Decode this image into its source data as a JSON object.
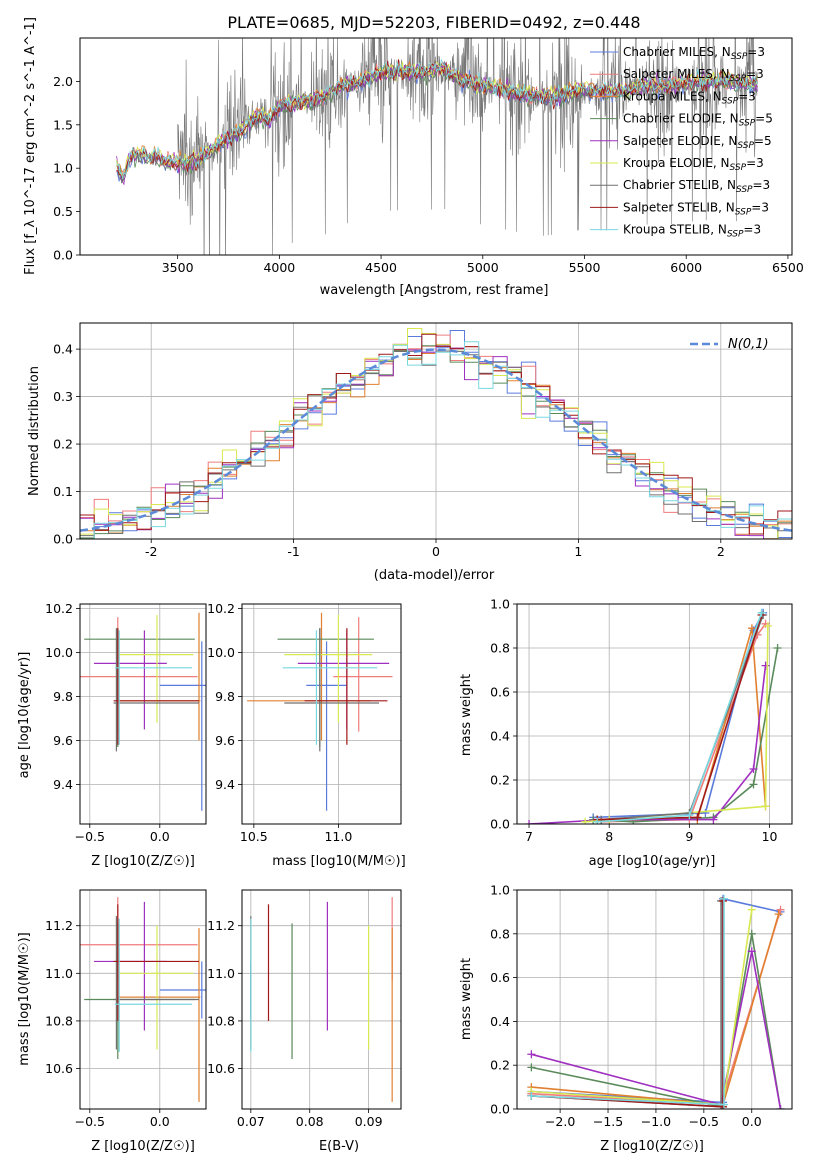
{
  "colors": [
    "#5b7bdc",
    "#f07c7c",
    "#e08030",
    "#5a8a5a",
    "#a030c0",
    "#d8e850",
    "#707070",
    "#a01818",
    "#7ad8e0"
  ],
  "series_labels": [
    "Chabrier MILES",
    "Salpeter MILES",
    "Kroupa MILES",
    "Chabrier ELODIE",
    "Salpeter ELODIE",
    "Kroupa ELODIE",
    "Chabrier STELIB",
    "Salpeter STELIB",
    "Kroupa STELIB"
  ],
  "nssp": [
    3,
    3,
    3,
    5,
    5,
    3,
    3,
    3,
    3
  ],
  "chart_data": [
    {
      "id": "spectrum",
      "type": "line",
      "title": "PLATE=0685, MJD=52203, FIBERID=0492, z=0.448",
      "xlabel": "wavelength [Angstrom, rest frame]",
      "ylabel": "Flux [f_λ 10^-17 erg cm^-2 s^-1 A^-1]",
      "xlim": [
        3020,
        6520
      ],
      "ylim": [
        0,
        2.5
      ],
      "xticks": [
        3500,
        4000,
        4500,
        5000,
        5500,
        6000,
        6500
      ],
      "yticks": [
        0.0,
        0.5,
        1.0,
        1.5,
        2.0
      ],
      "grid": false,
      "legend": "upper right",
      "model_continuum": [
        [
          3200,
          1.05
        ],
        [
          3230,
          0.87
        ],
        [
          3260,
          1.1
        ],
        [
          3300,
          1.16
        ],
        [
          3350,
          1.12
        ],
        [
          3400,
          1.12
        ],
        [
          3450,
          1.08
        ],
        [
          3500,
          1.06
        ],
        [
          3550,
          1.05
        ],
        [
          3600,
          1.1
        ],
        [
          3650,
          1.18
        ],
        [
          3700,
          1.28
        ],
        [
          3750,
          1.35
        ],
        [
          3800,
          1.42
        ],
        [
          3850,
          1.5
        ],
        [
          3900,
          1.62
        ],
        [
          3950,
          1.55
        ],
        [
          4000,
          1.72
        ],
        [
          4100,
          1.75
        ],
        [
          4200,
          1.8
        ],
        [
          4300,
          1.95
        ],
        [
          4400,
          2.0
        ],
        [
          4500,
          2.1
        ],
        [
          4600,
          2.12
        ],
        [
          4700,
          2.1
        ],
        [
          4800,
          2.15
        ],
        [
          4900,
          2.0
        ],
        [
          5000,
          1.95
        ],
        [
          5100,
          1.9
        ],
        [
          5200,
          1.85
        ],
        [
          5300,
          1.82
        ],
        [
          5400,
          1.85
        ],
        [
          5500,
          1.9
        ],
        [
          5600,
          1.88
        ],
        [
          5700,
          1.9
        ],
        [
          5800,
          1.95
        ],
        [
          5900,
          1.95
        ],
        [
          6000,
          1.98
        ],
        [
          6100,
          2.0
        ],
        [
          6200,
          2.0
        ],
        [
          6300,
          1.98
        ],
        [
          6350,
          1.98
        ]
      ],
      "data_noise_range": [
        3500,
        6350
      ]
    },
    {
      "id": "residuals",
      "type": "histogram",
      "xlabel": "(data-model)/error",
      "ylabel": "Normed distribution",
      "xlim": [
        -2.5,
        2.5
      ],
      "ylim": [
        0,
        0.455
      ],
      "xticks": [
        -2,
        -1,
        0,
        1,
        2
      ],
      "yticks": [
        0.0,
        0.1,
        0.2,
        0.3,
        0.4
      ],
      "grid": true,
      "legend": "upper right",
      "gaussian_label": "N(0,1)",
      "gaussian_color": "#5b8ad8",
      "bin_width": 0.1
    },
    {
      "id": "age_vs_Z",
      "type": "scatter",
      "xlabel": "Z [log10(Z/Z☉)]",
      "ylabel": "age  [log10(age/yr)]",
      "xlim": [
        -0.57,
        0.33
      ],
      "ylim": [
        9.22,
        10.22
      ],
      "xticks": [
        -0.5,
        0.0
      ],
      "xtick_labels": [
        "−0.5",
        "0.0"
      ],
      "yticks": [
        9.4,
        9.6,
        9.8,
        10.0,
        10.2
      ],
      "ytick_labels": [
        "9.4",
        "9.6",
        "9.8",
        "10.0",
        "10.2"
      ],
      "grid": true
    },
    {
      "id": "age_vs_mass",
      "type": "scatter",
      "xlabel": "mass [log10(M/M☉)]",
      "xlim": [
        10.43,
        11.37
      ],
      "ylim": [
        9.22,
        10.22
      ],
      "xticks": [
        10.5,
        11.0
      ],
      "xtick_labels": [
        "10.5",
        "11.0"
      ],
      "yticks": [
        9.4,
        9.6,
        9.8,
        10.0,
        10.2
      ],
      "ytick_labels": [
        "9.4",
        "9.6",
        "9.8",
        "10.0",
        "10.2"
      ],
      "grid": true
    },
    {
      "id": "mass_weight_vs_age",
      "type": "line",
      "xlabel": "age  [log10(age/yr)]",
      "ylabel": "mass weight",
      "xlim": [
        6.85,
        10.28
      ],
      "ylim": [
        0,
        1.0
      ],
      "xticks": [
        7,
        8,
        9,
        10
      ],
      "xtick_labels": [
        "7",
        "8",
        "9",
        "10"
      ],
      "yticks": [
        0.0,
        0.2,
        0.4,
        0.6,
        0.8,
        1.0
      ],
      "ytick_labels": [
        "0.0",
        "0.2",
        "0.4",
        "0.6",
        "0.8",
        "1.0"
      ],
      "grid": true
    },
    {
      "id": "mass_vs_Z",
      "type": "scatter",
      "xlabel": "Z [log10(Z/Z☉)]",
      "ylabel": "mass [log10(M/M☉)]",
      "xlim": [
        -0.57,
        0.33
      ],
      "ylim": [
        10.43,
        11.35
      ],
      "xticks": [
        -0.5,
        0.0
      ],
      "xtick_labels": [
        "−0.5",
        "0.0"
      ],
      "yticks": [
        10.6,
        10.8,
        11.0,
        11.2
      ],
      "ytick_labels": [
        "10.6",
        "10.8",
        "11.0",
        "11.2"
      ],
      "grid": true
    },
    {
      "id": "mass_vs_EBV",
      "type": "scatter",
      "xlabel": "E(B-V)",
      "xlim": [
        0.0685,
        0.0955
      ],
      "ylim": [
        10.43,
        11.35
      ],
      "xticks": [
        0.07,
        0.08,
        0.09
      ],
      "xtick_labels": [
        "0.07",
        "0.08",
        "0.09"
      ],
      "yticks": [
        10.6,
        10.8,
        11.0,
        11.2
      ],
      "ytick_labels": [
        "10.6",
        "10.8",
        "11.0",
        "11.2"
      ],
      "grid": true
    },
    {
      "id": "mass_weight_vs_Z",
      "type": "line",
      "xlabel": "Z [log10(Z/Z☉)]",
      "ylabel": "mass weight",
      "xlim": [
        -2.45,
        0.42
      ],
      "ylim": [
        0,
        1.0
      ],
      "xticks": [
        -2.0,
        -1.5,
        -1.0,
        -0.5,
        0.0
      ],
      "xtick_labels": [
        "−2.0",
        "−1.5",
        "−1.0",
        "−0.5",
        "0.0"
      ],
      "yticks": [
        0.0,
        0.2,
        0.4,
        0.6,
        0.8,
        1.0
      ],
      "ytick_labels": [
        "0.0",
        "0.2",
        "0.4",
        "0.6",
        "0.8",
        "1.0"
      ],
      "grid": true
    }
  ],
  "fits": [
    {
      "name": "Chabrier MILES",
      "Z": 0.3,
      "Z_err": [
        0.3,
        0.27
      ],
      "age": 9.85,
      "age_err": [
        0.57,
        0.2
      ],
      "mass": 10.93,
      "mass_err": [
        0.12,
        0.12
      ],
      "ebv": 0.07
    },
    {
      "name": "Salpeter MILES",
      "Z": -0.3,
      "Z_err": [
        0.28,
        0.57
      ],
      "age": 9.89,
      "age_err": [
        0.25,
        0.27
      ],
      "mass": 11.12,
      "mass_err": [
        0.15,
        0.2
      ],
      "ebv": 0.094
    },
    {
      "name": "Kroupa MILES",
      "Z": 0.28,
      "Z_err": [
        0.58,
        0.01
      ],
      "age": 9.78,
      "age_err": [
        0.18,
        0.4
      ],
      "mass": 10.9,
      "mass_err": [
        0.44,
        0.29
      ],
      "ebv": 0.094
    },
    {
      "name": "Chabrier ELODIE",
      "Z": -0.3,
      "Z_err": [
        0.24,
        0.55
      ],
      "age": 10.06,
      "age_err": [
        0.49,
        0.05
      ],
      "mass": 10.89,
      "mass_err": [
        0.25,
        0.32
      ],
      "ebv": 0.077
    },
    {
      "name": "Salpeter ELODIE",
      "Z": -0.11,
      "Z_err": [
        0.36,
        0.16
      ],
      "age": 9.95,
      "age_err": [
        0.3,
        0.15
      ],
      "mass": 11.05,
      "mass_err": [
        0.29,
        0.25
      ],
      "ebv": 0.083
    },
    {
      "name": "Kroupa ELODIE",
      "Z": -0.02,
      "Z_err": [
        0.28,
        0.26
      ],
      "age": 9.99,
      "age_err": [
        0.31,
        0.18
      ],
      "mass": 11.0,
      "mass_err": [
        0.32,
        0.2
      ],
      "ebv": 0.09
    },
    {
      "name": "Chabrier STELIB",
      "Z": -0.31,
      "Z_err": [
        0.02,
        0.59
      ],
      "age": 9.77,
      "age_err": [
        0.22,
        0.34
      ],
      "mass": 10.89,
      "mass_err": [
        0.21,
        0.35
      ],
      "ebv": 0.07
    },
    {
      "name": "Salpeter STELIB",
      "Z": -0.3,
      "Z_err": [
        0.03,
        0.58
      ],
      "age": 9.78,
      "age_err": [
        0.2,
        0.33
      ],
      "mass": 11.05,
      "mass_err": [
        0.25,
        0.24
      ],
      "ebv": 0.073
    },
    {
      "name": "Kroupa STELIB",
      "Z": -0.29,
      "Z_err": [
        0.03,
        0.52
      ],
      "age": 9.93,
      "age_err": [
        0.35,
        0.17
      ],
      "mass": 10.87,
      "mass_err": [
        0.2,
        0.36
      ],
      "ebv": 0.07
    }
  ],
  "ssp_age": [
    [
      [
        7.8,
        0.03
      ],
      [
        9.2,
        0.05
      ],
      [
        9.8,
        0.88
      ],
      [
        9.92,
        0.96
      ]
    ],
    [
      [
        7.9,
        0.01
      ],
      [
        9.0,
        0.02
      ],
      [
        9.85,
        0.86
      ],
      [
        9.95,
        0.91
      ]
    ],
    [
      [
        7.85,
        0.02
      ],
      [
        9.1,
        0.02
      ],
      [
        9.78,
        0.89
      ],
      [
        9.95,
        0.08
      ]
    ],
    [
      [
        7.8,
        0.02
      ],
      [
        8.3,
        0.01
      ],
      [
        9.3,
        0.03
      ],
      [
        9.8,
        0.18
      ],
      [
        10.1,
        0.8
      ]
    ],
    [
      [
        7.0,
        0.0
      ],
      [
        8.0,
        0.02
      ],
      [
        9.3,
        0.02
      ],
      [
        9.8,
        0.25
      ],
      [
        9.95,
        0.72
      ]
    ],
    [
      [
        7.7,
        0.01
      ],
      [
        8.0,
        0.02
      ],
      [
        9.95,
        0.08
      ],
      [
        9.98,
        0.9
      ]
    ],
    [
      [
        7.9,
        0.02
      ],
      [
        9.0,
        0.05
      ],
      [
        9.92,
        0.95
      ]
    ],
    [
      [
        7.85,
        0.02
      ],
      [
        9.1,
        0.03
      ],
      [
        9.9,
        0.95
      ]
    ],
    [
      [
        7.85,
        0.01
      ],
      [
        9.0,
        0.04
      ],
      [
        9.9,
        0.96
      ]
    ]
  ],
  "ssp_Z": [
    [
      [
        -2.3,
        0.08
      ],
      [
        -0.3,
        0.03
      ],
      [
        -0.3,
        0.96
      ],
      [
        0.3,
        0.9
      ]
    ],
    [
      [
        -2.3,
        0.07
      ],
      [
        -0.32,
        0.02
      ],
      [
        0.3,
        0.91
      ]
    ],
    [
      [
        -2.3,
        0.1
      ],
      [
        -0.3,
        0.02
      ],
      [
        0.28,
        0.89
      ]
    ],
    [
      [
        -2.3,
        0.19
      ],
      [
        -0.31,
        0.01
      ],
      [
        0.0,
        0.8
      ],
      [
        0.3,
        0.0
      ]
    ],
    [
      [
        -2.3,
        0.25
      ],
      [
        -0.32,
        0.02
      ],
      [
        -0.0,
        0.72
      ],
      [
        0.3,
        0.0
      ]
    ],
    [
      [
        -2.3,
        0.08
      ],
      [
        -0.3,
        0.02
      ],
      [
        0.0,
        0.91
      ]
    ],
    [
      [
        -2.3,
        0.06
      ],
      [
        -0.32,
        0.01
      ],
      [
        -0.32,
        0.95
      ]
    ],
    [
      [
        -2.3,
        0.06
      ],
      [
        -0.3,
        0.01
      ],
      [
        -0.3,
        0.95
      ]
    ],
    [
      [
        -2.3,
        0.06
      ],
      [
        -0.29,
        0.02
      ],
      [
        -0.29,
        0.96
      ]
    ]
  ]
}
